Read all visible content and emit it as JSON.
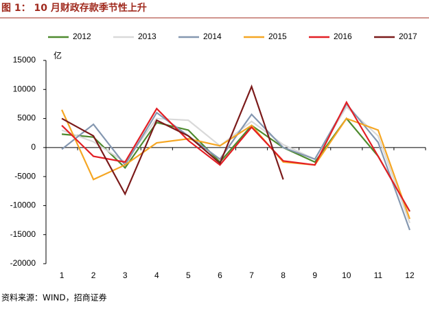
{
  "title": "图 1：  10 月财政存款季节性上升",
  "source": "资料来源：WIND，招商证券",
  "chart_data": {
    "type": "line",
    "y_unit": "亿",
    "categories": [
      "1",
      "2",
      "3",
      "4",
      "5",
      "6",
      "7",
      "8",
      "9",
      "10",
      "11",
      "12"
    ],
    "ylim": [
      -20000,
      15000
    ],
    "yticks": [
      -20000,
      -15000,
      -10000,
      -5000,
      0,
      5000,
      10000,
      15000
    ],
    "series": [
      {
        "name": "2012",
        "color": "#4e8a2e",
        "values": [
          2300,
          1800,
          -3500,
          4300,
          3000,
          -2500,
          3800,
          0,
          -2500,
          5000,
          -1500,
          -11000
        ]
      },
      {
        "name": "2013",
        "color": "#d9d9d9",
        "values": [
          3000,
          1000,
          -2500,
          5000,
          4700,
          300,
          4500,
          500,
          -2000,
          7000,
          2000,
          -13000
        ]
      },
      {
        "name": "2014",
        "color": "#8497b0",
        "values": [
          -300,
          4000,
          -3000,
          6000,
          2000,
          -2000,
          5700,
          0,
          -2000,
          7500,
          900,
          -14200
        ]
      },
      {
        "name": "2015",
        "color": "#f5a623",
        "values": [
          6500,
          -5500,
          -3000,
          800,
          1500,
          300,
          3800,
          -2500,
          -3000,
          5000,
          3000,
          -12300
        ]
      },
      {
        "name": "2016",
        "color": "#e31e24",
        "values": [
          3800,
          -1500,
          -2500,
          6700,
          1200,
          -3000,
          3500,
          -2300,
          -3000,
          7800,
          -1500,
          -11000
        ]
      },
      {
        "name": "2017",
        "color": "#7b1a1a",
        "values": [
          5000,
          2000,
          -8000,
          4700,
          2000,
          -2700,
          10500,
          -5500,
          null,
          null,
          null,
          null
        ]
      }
    ]
  }
}
